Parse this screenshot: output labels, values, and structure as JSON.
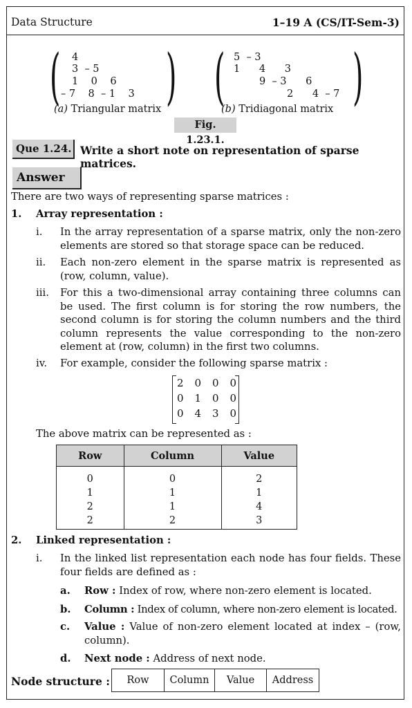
{
  "header": {
    "left": "Data Structure",
    "right": "1–19 A (CS/IT-Sem-3)"
  },
  "figure": {
    "triangular_rows": [
      "4",
      "3  – 5",
      "1    0    6",
      "– 7    8  – 1    3"
    ],
    "tridiagonal_rows": [
      "5  – 3",
      "1      4      3",
      "9  – 3      6",
      "2      4  – 7"
    ],
    "caption_a_label": "(a)",
    "caption_a": "Triangular matrix",
    "caption_b_label": "(b)",
    "caption_b": "Tridiagonal matrix",
    "label": "Fig. 1.23.1."
  },
  "question": {
    "label": "Que 1.24.",
    "text": "Write a short note on representation of sparse matrices."
  },
  "answer_label": "Answer",
  "intro": "There are two ways of representing sparse matrices :",
  "section1": {
    "num": "1.",
    "title": "Array representation :",
    "items": [
      {
        "num": "i.",
        "text": "In the array representation of a sparse matrix, only the non-zero elements are stored so that storage space can be reduced."
      },
      {
        "num": "ii.",
        "text": "Each non-zero element in the sparse matrix is represented as (row, column, value)."
      },
      {
        "num": "iii.",
        "text": "For this a two-dimensional array containing three columns can be used. The first column is for storing the row numbers, the second column is for storing the column numbers and the third column represents the value corresponding to the non-zero element at (row, column) in the first two columns."
      },
      {
        "num": "iv.",
        "text": "For example, consider the following sparse matrix :"
      }
    ],
    "matrix": [
      [
        "2",
        "0",
        "0",
        "0"
      ],
      [
        "0",
        "1",
        "0",
        "0"
      ],
      [
        "0",
        "4",
        "3",
        "0"
      ]
    ],
    "represented": "The above matrix can be represented as :",
    "table": {
      "headers": [
        "Row",
        "Column",
        "Value"
      ],
      "rows": [
        [
          "0",
          "0",
          "2"
        ],
        [
          "1",
          "1",
          "1"
        ],
        [
          "2",
          "1",
          "4"
        ],
        [
          "2",
          "2",
          "3"
        ]
      ]
    }
  },
  "section2": {
    "num": "2.",
    "title": "Linked representation :",
    "item_num": "i.",
    "item_text": "In the linked list representation each node has four fields. These four fields are defined as :",
    "fields": [
      {
        "num": "a.",
        "name": "Row :",
        "desc": "Index of row, where non-zero element is located."
      },
      {
        "num": "b.",
        "name": "Column :",
        "desc": "Index of column, where non-zero element is located."
      },
      {
        "num": "c.",
        "name": "Value :",
        "desc": "Value of non-zero element located at index – (row, column)."
      },
      {
        "num": "d.",
        "name": "Next node :",
        "desc": "Address of next node."
      }
    ]
  },
  "node_structure": {
    "label": "Node structure :",
    "cells": [
      "Row",
      "Column",
      "Value",
      "Address"
    ]
  }
}
